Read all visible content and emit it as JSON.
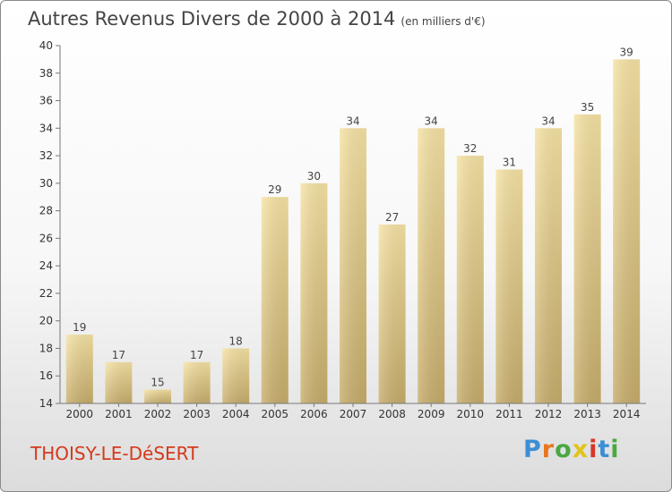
{
  "title": "Autres Revenus Divers de 2000 à 2014",
  "unit": "(en milliers d'€)",
  "place": "THOISY-LE-DéSERT",
  "logo": {
    "text": "Proxiti",
    "colors": [
      "#3b8fd4",
      "#e9751e",
      "#4aa843",
      "#e2c318",
      "#d7372a",
      "#3b8fd4",
      "#4aa843"
    ]
  },
  "chart_data": {
    "type": "bar",
    "categories": [
      "2000",
      "2001",
      "2002",
      "2003",
      "2004",
      "2005",
      "2006",
      "2007",
      "2008",
      "2009",
      "2010",
      "2011",
      "2012",
      "2013",
      "2014"
    ],
    "values": [
      19,
      17,
      15,
      17,
      18,
      29,
      30,
      34,
      27,
      34,
      32,
      31,
      34,
      35,
      39
    ],
    "title": "Autres Revenus Divers de 2000 à 2014",
    "ylim": [
      14,
      40
    ],
    "yticks": [
      14,
      16,
      18,
      20,
      22,
      24,
      26,
      28,
      30,
      32,
      34,
      36,
      38,
      40
    ],
    "grid": false,
    "legend": "none",
    "bar_colors": [
      "#f6e3a4",
      "#c7ad6b"
    ]
  }
}
